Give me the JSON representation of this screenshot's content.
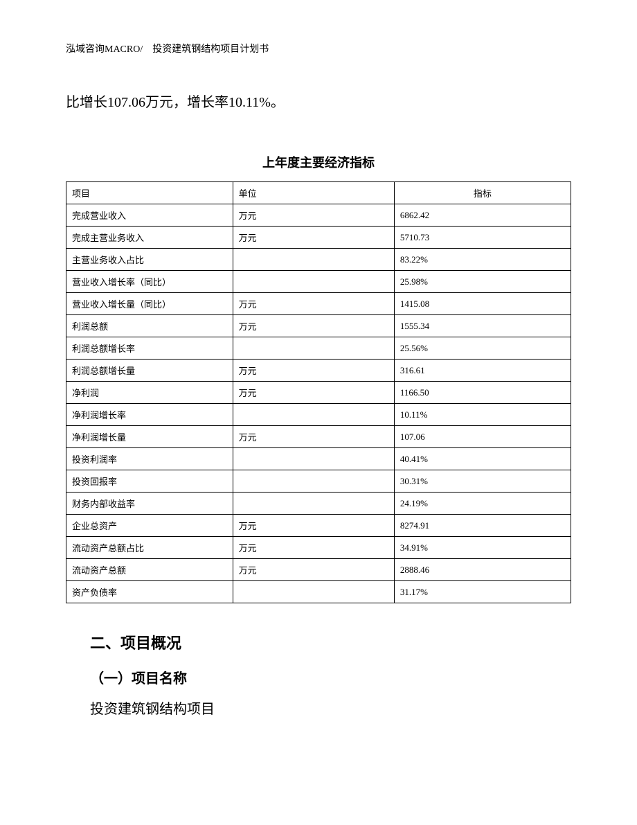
{
  "header": {
    "text": "泓域咨询MACRO/　投资建筑钢结构项目计划书"
  },
  "body_text": "比增长107.06万元，增长率10.11%。",
  "table": {
    "title": "上年度主要经济指标",
    "columns": [
      "项目",
      "单位",
      "指标"
    ],
    "rows": [
      {
        "item": "完成营业收入",
        "unit": "万元",
        "value": "6862.42"
      },
      {
        "item": "完成主营业务收入",
        "unit": "万元",
        "value": "5710.73"
      },
      {
        "item": "主营业务收入占比",
        "unit": "",
        "value": "83.22%"
      },
      {
        "item": "营业收入增长率（同比）",
        "unit": "",
        "value": "25.98%"
      },
      {
        "item": "营业收入增长量（同比）",
        "unit": "万元",
        "value": "1415.08"
      },
      {
        "item": "利润总额",
        "unit": "万元",
        "value": "1555.34"
      },
      {
        "item": "利润总额增长率",
        "unit": "",
        "value": "25.56%"
      },
      {
        "item": "利润总额增长量",
        "unit": "万元",
        "value": "316.61"
      },
      {
        "item": "净利润",
        "unit": "万元",
        "value": "1166.50"
      },
      {
        "item": "净利润增长率",
        "unit": "",
        "value": "10.11%"
      },
      {
        "item": "净利润增长量",
        "unit": "万元",
        "value": "107.06"
      },
      {
        "item": "投资利润率",
        "unit": "",
        "value": "40.41%"
      },
      {
        "item": "投资回报率",
        "unit": "",
        "value": "30.31%"
      },
      {
        "item": "财务内部收益率",
        "unit": "",
        "value": "24.19%"
      },
      {
        "item": "企业总资产",
        "unit": "万元",
        "value": "8274.91"
      },
      {
        "item": "流动资产总额占比",
        "unit": "万元",
        "value": "34.91%"
      },
      {
        "item": "流动资产总额",
        "unit": "万元",
        "value": "2888.46"
      },
      {
        "item": "资产负债率",
        "unit": "",
        "value": "31.17%"
      }
    ]
  },
  "section": {
    "heading": "二、项目概况",
    "subsection": "（一）项目名称",
    "content": "投资建筑钢结构项目"
  }
}
